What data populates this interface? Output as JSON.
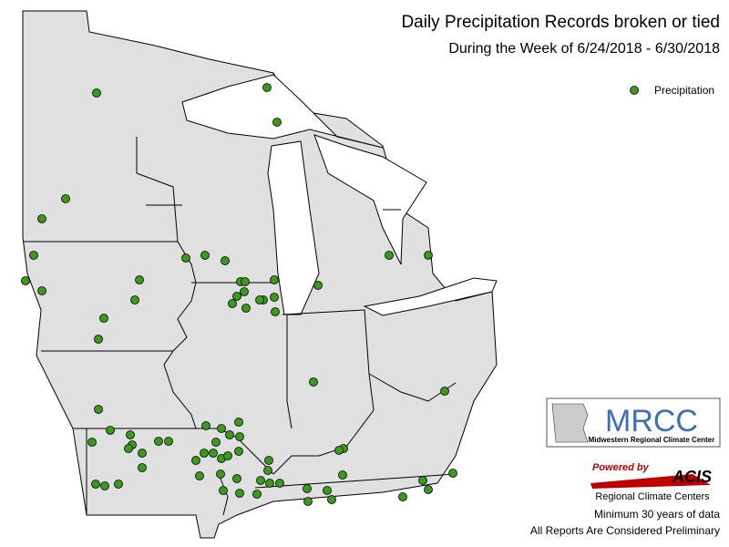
{
  "header": {
    "title": "Daily Precipitation Records broken or tied",
    "subtitle": "During the Week of 6/24/2018 - 6/30/2018"
  },
  "legend": {
    "items": [
      "Precipitation"
    ]
  },
  "logos": {
    "mrcc": {
      "name": "MRCC",
      "caption": "Midwestern Regional Climate Center"
    },
    "acis": {
      "powered": "Powered by",
      "name": "ACIS",
      "caption": "Regional Climate Centers"
    }
  },
  "footer": {
    "notes": [
      "Minimum 30 years of data",
      "All Reports Are Considered Preliminary"
    ]
  }
}
